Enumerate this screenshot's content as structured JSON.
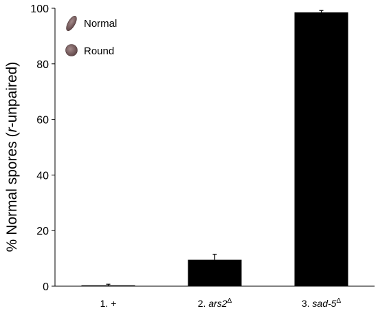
{
  "chart_data": {
    "type": "bar",
    "categories": [
      {
        "prefix": "1. ",
        "italic": "",
        "sup": "",
        "plain": "+"
      },
      {
        "prefix": "2. ",
        "italic": "ars2",
        "sup": "Δ",
        "plain": ""
      },
      {
        "prefix": "3. ",
        "italic": "sad-5",
        "sup": "Δ",
        "plain": ""
      }
    ],
    "values": [
      0.3,
      9.5,
      98.5
    ],
    "errors": [
      0.4,
      2.0,
      0.7
    ],
    "ylim": [
      0,
      100
    ],
    "yticks": [
      "0",
      "20",
      "40",
      "60",
      "80",
      "100"
    ],
    "ylabel": {
      "prefix": "% Normal spores (",
      "italic": "r",
      "suffix": "-unpaired)"
    },
    "legend": [
      {
        "label": "Normal",
        "icon": "elongated-spore-icon",
        "color": "#7a5c5e"
      },
      {
        "label": "Round",
        "icon": "round-spore-icon",
        "color": "#7a6868"
      }
    ],
    "bar_color": "#000000",
    "grid": false,
    "legend_position": "top-left"
  }
}
